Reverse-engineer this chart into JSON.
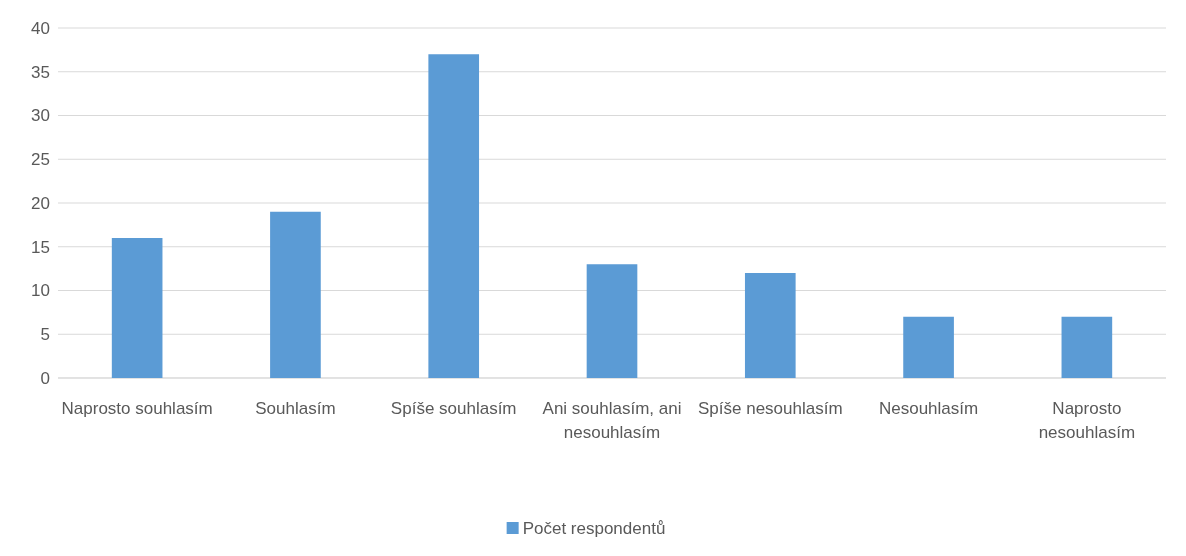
{
  "chart_data": {
    "type": "bar",
    "categories": [
      "Naprosto souhlasím",
      "Souhlasím",
      "Spíše souhlasím",
      "Ani souhlasím, ani nesouhlasím",
      "Spíše nesouhlasím",
      "Nesouhlasím",
      "Naprosto nesouhlasím"
    ],
    "series": [
      {
        "name": "Počet respondentů",
        "color": "#5b9bd5",
        "values": [
          16,
          19,
          37,
          13,
          12,
          7,
          7
        ]
      }
    ],
    "ylim": [
      0,
      40
    ],
    "yticks": [
      0,
      5,
      10,
      15,
      20,
      25,
      30,
      35,
      40
    ],
    "grid": "y",
    "legend": "bottom"
  }
}
